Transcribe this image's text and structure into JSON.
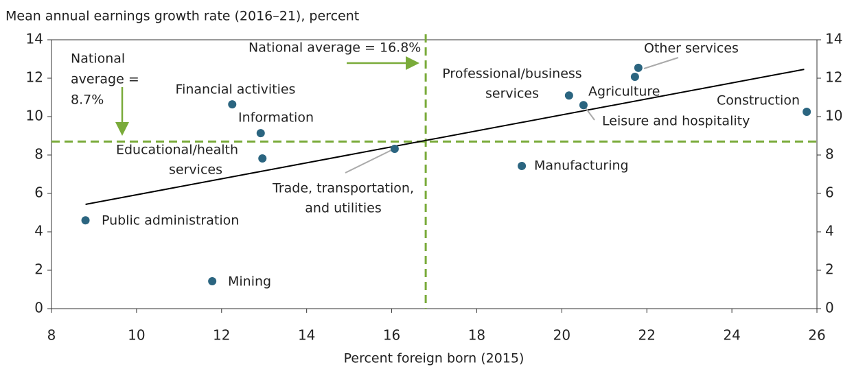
{
  "chart_data": {
    "type": "scatter",
    "y_label": "Mean annual earnings growth rate (2016–21), percent",
    "x_label": "Percent foreign born (2015)",
    "labels": [
      [
        "Public administration"
      ],
      [
        "Mining"
      ],
      [
        "Financial activities"
      ],
      [
        "Information"
      ],
      [
        "Educational/health",
        "services"
      ],
      [
        "Trade, transportation,",
        "and utilities"
      ],
      [
        "Manufacturing"
      ],
      [
        "Professional/business",
        "services"
      ],
      [
        "Leisure and hospitality"
      ],
      [
        "Agriculture"
      ],
      [
        "Other services"
      ],
      [
        "Construction"
      ]
    ],
    "x": [
      8.8,
      11.78,
      12.25,
      12.92,
      12.96,
      16.07,
      19.06,
      20.17,
      20.51,
      21.72,
      21.8,
      25.76
    ],
    "values": [
      4.6,
      1.43,
      10.64,
      9.14,
      7.82,
      8.32,
      7.43,
      11.1,
      10.6,
      12.07,
      12.54,
      10.25
    ],
    "color": "#2b6580",
    "trend_line": {
      "x": [
        8.8,
        25.7
      ],
      "values": [
        5.43,
        12.46
      ],
      "color": "#000000"
    },
    "reference_lines": {
      "color": "#7aab3a",
      "x": {
        "value": 16.8,
        "label": [
          "National average = 16.8%"
        ]
      },
      "y": {
        "value": 8.7,
        "label": [
          "National",
          "average =",
          "8.7%"
        ]
      }
    },
    "xlim": [
      8,
      26
    ],
    "xticks": [
      8,
      10,
      12,
      14,
      16,
      18,
      20,
      22,
      24,
      26
    ],
    "ylim": [
      0,
      14
    ],
    "yticks": [
      0,
      2,
      4,
      6,
      8,
      10,
      12,
      14
    ]
  }
}
